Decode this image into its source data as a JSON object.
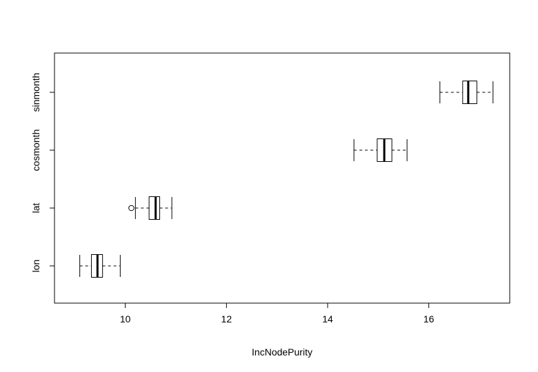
{
  "chart_data": {
    "type": "boxplot",
    "orientation": "horizontal",
    "xlabel": "IncNodePurity",
    "ylabel": "",
    "title": "",
    "xlim": [
      8.6,
      17.6
    ],
    "xticks": [
      10,
      12,
      14,
      16
    ],
    "categories": [
      "lon",
      "lat",
      "cosmonth",
      "sinmonth"
    ],
    "boxes": [
      {
        "category": "lon",
        "whisker_low": 9.1,
        "q1": 9.33,
        "median": 9.45,
        "q3": 9.55,
        "whisker_high": 9.9,
        "outliers": []
      },
      {
        "category": "lat",
        "whisker_low": 10.2,
        "q1": 10.47,
        "median": 10.6,
        "q3": 10.68,
        "whisker_high": 10.92,
        "outliers": [
          10.12
        ]
      },
      {
        "category": "cosmonth",
        "whisker_low": 14.52,
        "q1": 14.98,
        "median": 15.12,
        "q3": 15.27,
        "whisker_high": 15.57,
        "outliers": []
      },
      {
        "category": "sinmonth",
        "whisker_low": 16.22,
        "q1": 16.67,
        "median": 16.78,
        "q3": 16.95,
        "whisker_high": 17.27,
        "outliers": []
      }
    ],
    "grid": false,
    "legend": "none"
  }
}
